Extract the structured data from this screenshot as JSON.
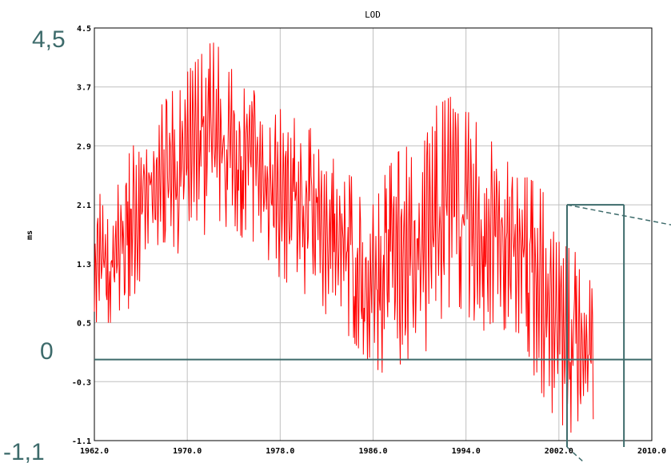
{
  "chart_data": {
    "type": "line",
    "title": "LOD",
    "xlabel": "",
    "ylabel": "ms",
    "xlim": [
      1962.0,
      2010.0
    ],
    "ylim": [
      -1.1,
      4.5
    ],
    "x_ticks": [
      "1962.0",
      "1970.0",
      "1978.0",
      "1986.0",
      "1994.0",
      "2002.0",
      "2010.0"
    ],
    "y_ticks": [
      "4.5",
      "3.7",
      "2.9",
      "2.1",
      "1.3",
      "0.5",
      "-0.3",
      "-1.1"
    ],
    "grid": true,
    "series": [
      {
        "color": "#ff0000",
        "envelope": {
          "x": [
            1962,
            1963,
            1964,
            1965,
            1966,
            1967,
            1968,
            1969,
            1970,
            1971,
            1972,
            1973,
            1974,
            1975,
            1976,
            1977,
            1978,
            1979,
            1980,
            1981,
            1982,
            1983,
            1984,
            1985,
            1986,
            1987,
            1988,
            1989,
            1990,
            1991,
            1992,
            1993,
            1994,
            1995,
            1996,
            1997,
            1998,
            1999,
            2000,
            2001,
            2002,
            2003,
            2004,
            2005
          ],
          "upper": [
            2.2,
            2.3,
            2.6,
            2.8,
            3.1,
            3.3,
            3.5,
            3.7,
            3.9,
            4.1,
            4.3,
            4.3,
            4.0,
            3.8,
            3.6,
            3.5,
            3.4,
            3.3,
            3.2,
            3.1,
            2.9,
            2.6,
            2.5,
            2.4,
            2.3,
            2.5,
            2.8,
            2.9,
            3.0,
            3.4,
            3.5,
            3.6,
            3.4,
            3.2,
            3.0,
            2.8,
            2.6,
            2.5,
            2.4,
            2.2,
            1.6,
            1.5,
            1.4,
            1.0
          ],
          "lower": [
            0.2,
            0.5,
            0.5,
            0.7,
            1.1,
            1.4,
            1.6,
            1.4,
            1.6,
            1.5,
            1.9,
            1.8,
            1.8,
            1.6,
            1.6,
            1.3,
            1.1,
            1.0,
            0.9,
            0.8,
            0.6,
            0.5,
            0.3,
            0.1,
            -0.1,
            -0.2,
            -0.1,
            0.0,
            0.0,
            0.2,
            0.6,
            0.8,
            0.6,
            0.5,
            0.3,
            0.4,
            0.4,
            0.3,
            -0.3,
            -0.6,
            -0.9,
            -1.0,
            -0.8,
            -1.0
          ]
        }
      }
    ],
    "annotations": {
      "top_label": "4,5",
      "zero_label": "0",
      "bottom_label": "-1,1",
      "zero_line": 0,
      "highlight_box": {
        "x_from": 2002.7,
        "x_to": 2007.6,
        "y_top": 2.1
      }
    },
    "colors": {
      "series": "#ff0000",
      "annotation": "#3d6b6b",
      "grid": "#c0c0c0"
    }
  }
}
